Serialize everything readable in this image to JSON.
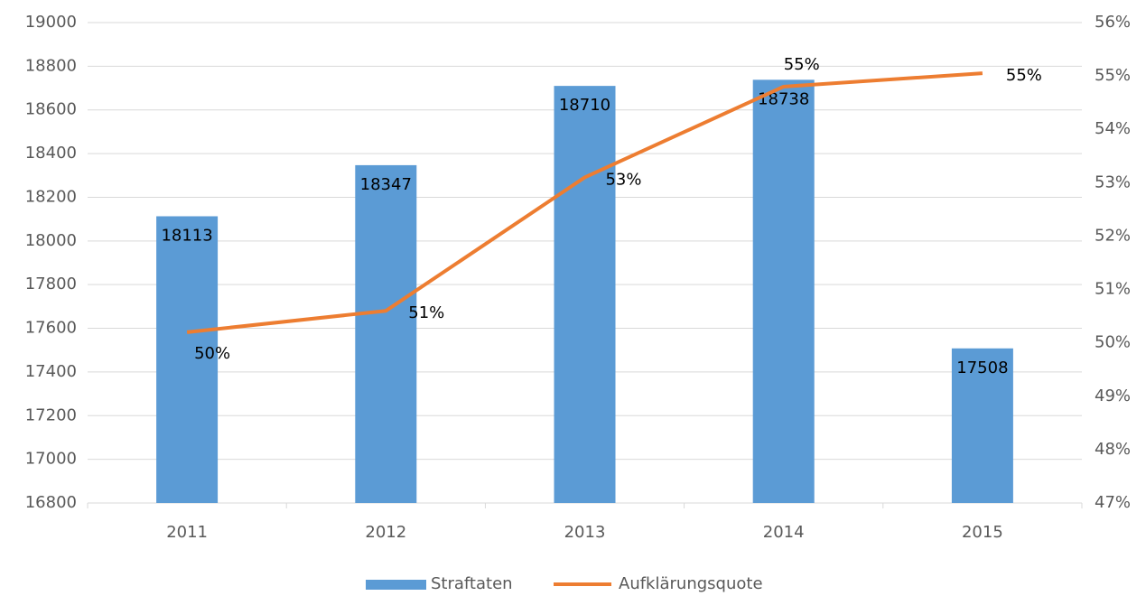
{
  "chart_data": {
    "type": "bar_line",
    "categories": [
      "2011",
      "2012",
      "2013",
      "2014",
      "2015"
    ],
    "series": [
      {
        "name": "Straftaten",
        "type": "bar",
        "color": "#5b9bd5",
        "values": [
          18113,
          18347,
          18710,
          18738,
          17508
        ]
      },
      {
        "name": "Aufklärungsquote",
        "type": "line",
        "axis": "y2",
        "color": "#ed7d31",
        "values": [
          50.2,
          50.6,
          53.1,
          54.8,
          55.05
        ],
        "value_labels": [
          "50%",
          "51%",
          "53%",
          "55%",
          "55%"
        ]
      }
    ],
    "ylim": [
      16800,
      19000
    ],
    "yticks": [
      16800,
      17000,
      17200,
      17400,
      17600,
      17800,
      18000,
      18200,
      18400,
      18600,
      18800,
      19000
    ],
    "y2lim": [
      47,
      56
    ],
    "y2ticks": [
      {
        "value": 47,
        "label": "47%"
      },
      {
        "value": 48,
        "label": "48%"
      },
      {
        "value": 49,
        "label": "49%"
      },
      {
        "value": 50,
        "label": "50%"
      },
      {
        "value": 51,
        "label": "51%"
      },
      {
        "value": 52,
        "label": "52%"
      },
      {
        "value": 53,
        "label": "53%"
      },
      {
        "value": 54,
        "label": "54%"
      },
      {
        "value": 55,
        "label": "55%"
      },
      {
        "value": 56,
        "label": "56%"
      }
    ],
    "grid": true,
    "legend": "bottom"
  }
}
